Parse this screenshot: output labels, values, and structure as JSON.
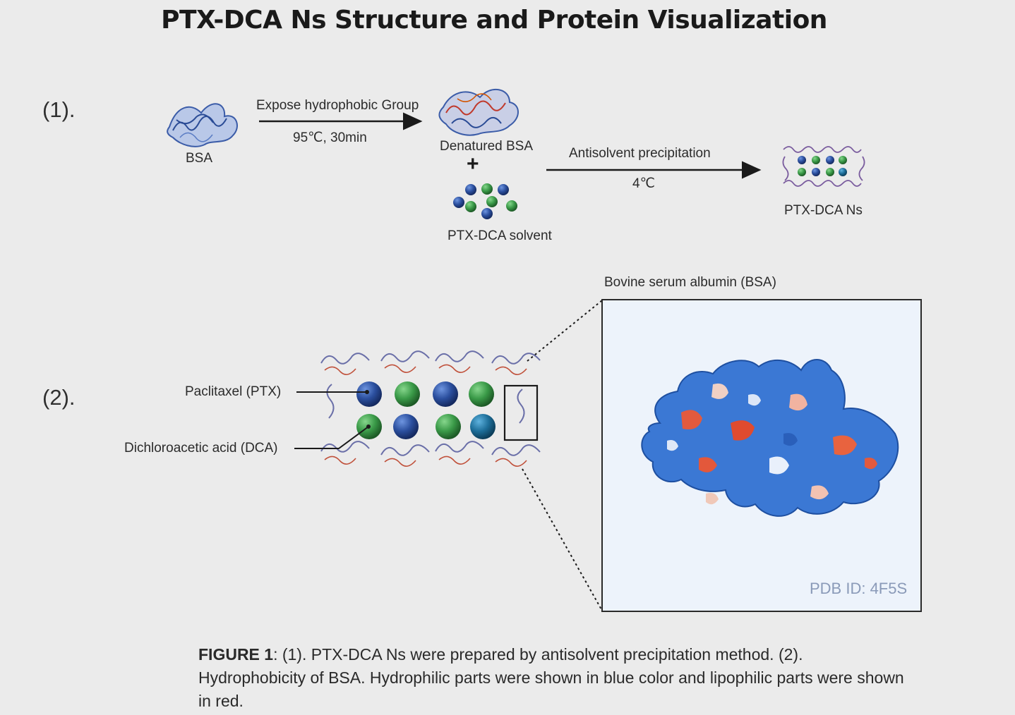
{
  "title": "PTX-DCA Ns Structure and Protein Visualization",
  "step1": {
    "marker": "(1).",
    "bsa_label": "BSA",
    "arrow1_top": "Expose hydrophobic Group",
    "arrow1_bottom": "95℃, 30min",
    "denatured_label": "Denatured BSA",
    "plus": "+",
    "solvent_label": "PTX-DCA solvent",
    "arrow2_top": "Antisolvent precipitation",
    "arrow2_bottom": "4℃",
    "product_label": "PTX-DCA Ns"
  },
  "step2": {
    "marker": "(2).",
    "ptx_label": "Paclitaxel (PTX)",
    "dca_label": "Dichloroacetic acid (DCA)",
    "inset_title": "Bovine serum albumin (BSA)",
    "pdb_id": "PDB ID: 4F5S"
  },
  "caption": {
    "bold": "FIGURE 1",
    "text": ": (1). PTX-DCA Ns were prepared by antisolvent precipitation method. (2). Hydrophobicity of BSA. Hydrophilic parts were shown in blue color and lipophilic parts were shown in red."
  },
  "colors": {
    "ptx_blue": "#2e56a6",
    "dca_green": "#3a9a48",
    "teal": "#1e6f9a",
    "hydrophilic": "#3f7fd6",
    "lipophilic": "#e2553a"
  }
}
